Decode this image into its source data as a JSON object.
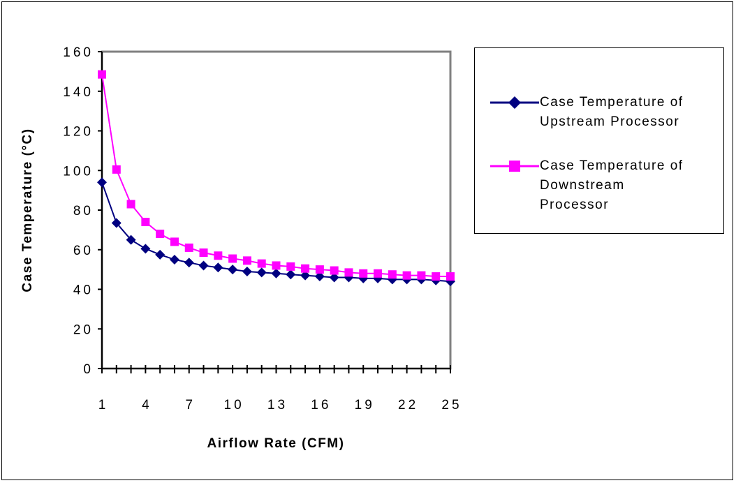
{
  "chart_data": {
    "type": "line",
    "title": "",
    "xlabel": "Airflow Rate (CFM)",
    "ylabel": "Case Temperature (°C)",
    "xlim": [
      1,
      25
    ],
    "ylim": [
      0,
      160
    ],
    "x_tick_labels": [
      "1",
      "4",
      "7",
      "10",
      "13",
      "16",
      "19",
      "22",
      "25"
    ],
    "y_tick_labels": [
      "0",
      "20",
      "40",
      "60",
      "80",
      "100",
      "120",
      "140",
      "160"
    ],
    "x": [
      1,
      2,
      3,
      4,
      5,
      6,
      7,
      8,
      9,
      10,
      11,
      12,
      13,
      14,
      15,
      16,
      17,
      18,
      19,
      20,
      21,
      22,
      23,
      24,
      25
    ],
    "legend_position": "right",
    "grid": false,
    "series": [
      {
        "name": "Case Temperature of Upstream Processor",
        "color": "#000080",
        "marker": "diamond",
        "values": [
          94,
          73.5,
          65,
          60.5,
          57.5,
          55,
          53.5,
          52,
          51,
          50,
          49,
          48.5,
          48,
          47.5,
          47,
          46.5,
          46,
          46,
          45.5,
          45.5,
          45,
          45,
          45,
          44.5,
          44
        ]
      },
      {
        "name": "Case Temperature of Downstream Processor",
        "color": "#ff00ff",
        "marker": "square",
        "values": [
          148.5,
          100.5,
          83,
          74,
          68,
          64,
          61,
          58.5,
          57,
          55.5,
          54.5,
          53,
          52,
          51.5,
          50.5,
          50,
          49.5,
          48.5,
          48,
          48,
          47.5,
          47,
          47,
          46.5,
          46.5
        ]
      }
    ]
  },
  "legend": {
    "items": [
      {
        "text": "Case Temperature of\nUpstream Processor"
      },
      {
        "text": "Case Temperature of\nDownstream\nProcessor"
      }
    ]
  }
}
